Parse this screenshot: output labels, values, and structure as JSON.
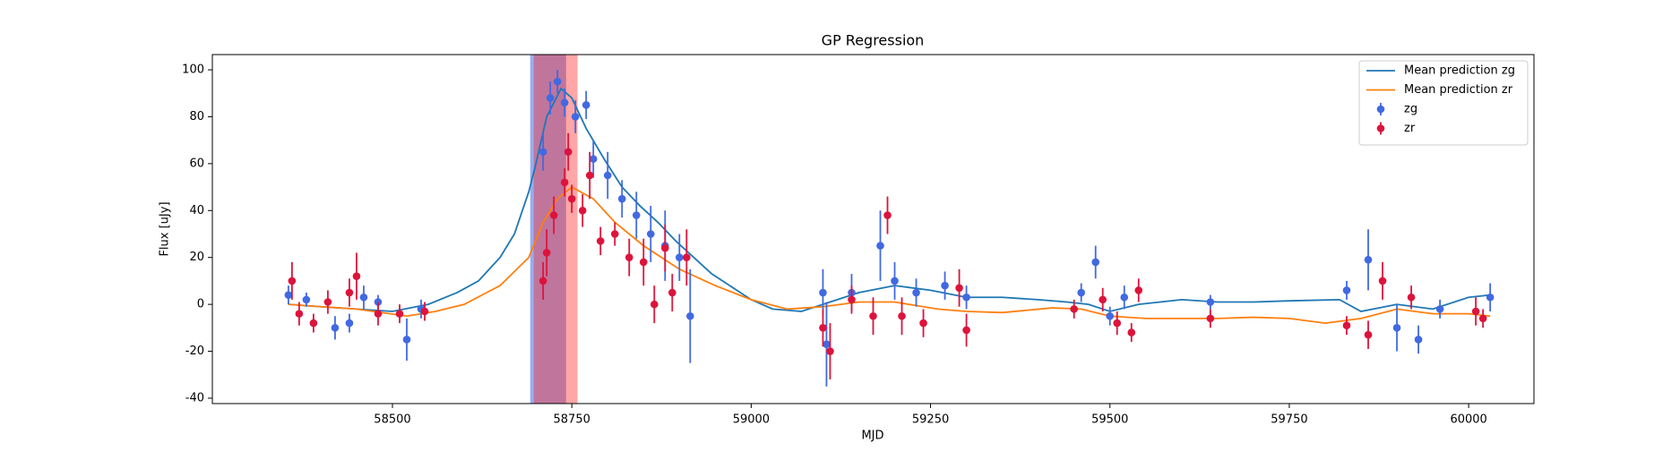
{
  "chart_data": {
    "type": "line",
    "title": "GP Regression",
    "xlabel": "MJD",
    "ylabel": "Flux [uJy]",
    "xlim": [
      58249,
      60091
    ],
    "xticks": [
      58500,
      58750,
      59000,
      59250,
      59500,
      59750,
      60000
    ],
    "ylim": [
      -42.3,
      106.5
    ],
    "yticks": [
      -40,
      -20,
      0,
      20,
      40,
      60,
      80,
      100
    ],
    "legend": "upper right",
    "spans": [
      {
        "x": [
          58692,
          58742
        ],
        "color": "#4169e1"
      },
      {
        "x": [
          58697,
          58758
        ],
        "color": "#ff2020"
      }
    ],
    "series": [
      {
        "name": "Mean prediction zg",
        "type": "line",
        "color": "#1f77b4",
        "x": [
          58355,
          58400,
          58450,
          58500,
          58550,
          58590,
          58620,
          58650,
          58670,
          58690,
          58700,
          58715,
          58735,
          58750,
          58770,
          58795,
          58820,
          58845,
          58870,
          58895,
          58920,
          58945,
          58970,
          59000,
          59030,
          59070,
          59100,
          59150,
          59200,
          59250,
          59300,
          59350,
          59400,
          59440,
          59470,
          59500,
          59540,
          59600,
          59650,
          59700,
          59750,
          59820,
          59850,
          59900,
          59950,
          60000,
          60030
        ],
        "values": [
          0,
          -1,
          -2,
          -3,
          0,
          5,
          10,
          20,
          30,
          48,
          60,
          80,
          92,
          88,
          75,
          62,
          50,
          42,
          35,
          27,
          20,
          13,
          8,
          2,
          -2,
          -3,
          0,
          5,
          8,
          6,
          3,
          3,
          2,
          1,
          0,
          -3,
          0,
          2,
          1,
          1,
          1.5,
          2,
          -3,
          0,
          -2,
          3,
          4
        ]
      },
      {
        "name": "Mean prediction zr",
        "type": "line",
        "color": "#ff7f0e",
        "x": [
          58355,
          58400,
          58450,
          58520,
          58560,
          58600,
          58650,
          58690,
          58710,
          58730,
          58750,
          58780,
          58810,
          58850,
          58900,
          58950,
          59000,
          59050,
          59100,
          59150,
          59200,
          59260,
          59300,
          59350,
          59420,
          59460,
          59500,
          59550,
          59650,
          59700,
          59750,
          59800,
          59850,
          59900,
          59950,
          60000,
          60030
        ],
        "values": [
          0,
          -1,
          -2,
          -5,
          -3,
          0,
          8,
          20,
          35,
          45,
          50,
          45,
          35,
          25,
          15,
          8,
          2,
          -2,
          -1,
          1,
          1,
          -2,
          -3,
          -3.5,
          -1.5,
          -2,
          -5,
          -6,
          -6,
          -5.5,
          -6,
          -8,
          -6,
          -2,
          -4,
          -4,
          -5
        ]
      },
      {
        "name": "zg",
        "type": "errorbar",
        "color": "#4169e1",
        "x": [
          58355,
          58380,
          58420,
          58440,
          58460,
          58480,
          58520,
          58540,
          58710,
          58720,
          58730,
          58740,
          58755,
          58770,
          58780,
          58800,
          58820,
          58840,
          58860,
          58880,
          58900,
          58915,
          59100,
          59105,
          59140,
          59180,
          59200,
          59230,
          59270,
          59300,
          59460,
          59480,
          59500,
          59520,
          59640,
          59830,
          59860,
          59900,
          59930,
          59960,
          60030
        ],
        "values": [
          4,
          2,
          -10,
          -8,
          3,
          1,
          -15,
          -2,
          65,
          88,
          95,
          86,
          80,
          85,
          62,
          55,
          45,
          38,
          30,
          25,
          20,
          -5,
          5,
          -17,
          5,
          25,
          10,
          5,
          8,
          3,
          5,
          18,
          -5,
          3,
          1,
          6,
          19,
          -10,
          -15,
          -2,
          3
        ],
        "errors": [
          4,
          3,
          5,
          4,
          5,
          3,
          9,
          4,
          8,
          7,
          5,
          6,
          7,
          6,
          8,
          10,
          8,
          10,
          12,
          15,
          10,
          20,
          10,
          18,
          8,
          15,
          8,
          6,
          6,
          5,
          4,
          7,
          4,
          5,
          3,
          4,
          13,
          10,
          6,
          4,
          6
        ]
      },
      {
        "name": "zr",
        "type": "errorbar",
        "color": "#dc143c",
        "x": [
          58360,
          58370,
          58390,
          58410,
          58440,
          58450,
          58480,
          58510,
          58545,
          58710,
          58715,
          58725,
          58740,
          58745,
          58750,
          58765,
          58775,
          58790,
          58810,
          58830,
          58850,
          58865,
          58880,
          58890,
          58910,
          59100,
          59110,
          59140,
          59170,
          59190,
          59210,
          59240,
          59290,
          59300,
          59450,
          59490,
          59510,
          59530,
          59540,
          59640,
          59830,
          59860,
          59880,
          59920,
          60010,
          60020
        ],
        "values": [
          10,
          -4,
          -8,
          1,
          5,
          12,
          -4,
          -4,
          -3,
          10,
          22,
          38,
          52,
          65,
          45,
          40,
          55,
          27,
          30,
          20,
          18,
          0,
          24,
          5,
          20,
          -10,
          -20,
          2,
          -5,
          38,
          -5,
          -8,
          7,
          -11,
          -2,
          2,
          -8,
          -12,
          6,
          -6,
          -9,
          -13,
          10,
          3,
          -3,
          -6
        ],
        "errors": [
          8,
          5,
          4,
          5,
          6,
          10,
          5,
          4,
          4,
          8,
          10,
          8,
          6,
          8,
          6,
          7,
          10,
          6,
          5,
          8,
          10,
          8,
          10,
          8,
          12,
          8,
          12,
          6,
          8,
          8,
          8,
          6,
          8,
          7,
          4,
          5,
          5,
          4,
          5,
          4,
          4,
          6,
          8,
          5,
          6,
          4
        ]
      }
    ]
  }
}
